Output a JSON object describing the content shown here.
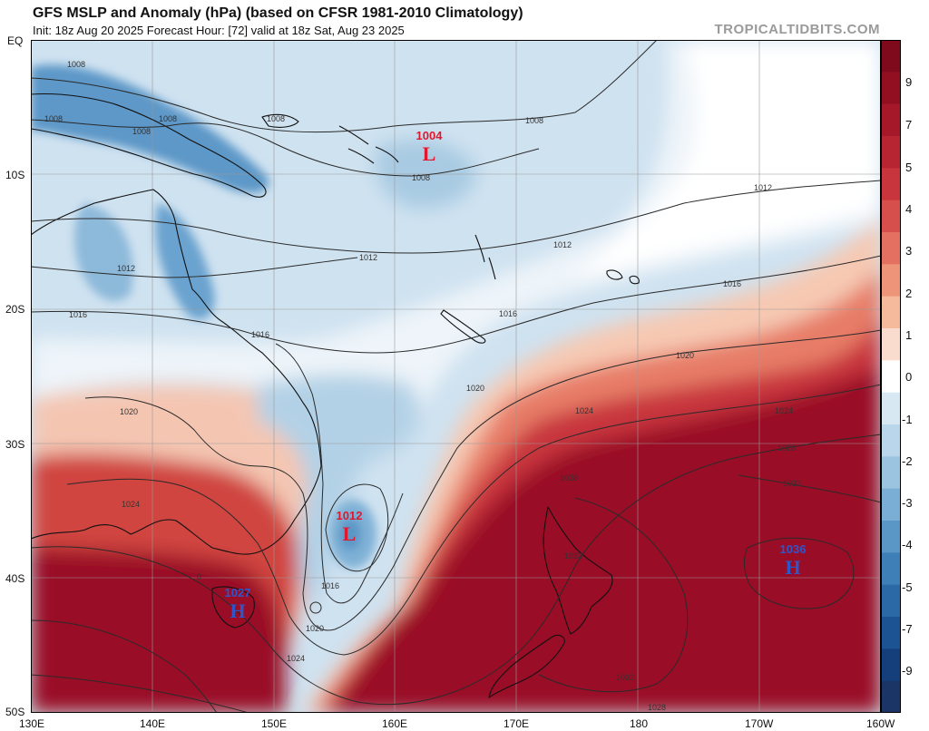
{
  "header": {
    "title": "GFS MSLP and Anomaly (hPa) (based on CFSR 1981-2010 Climatology)",
    "subtitle": "Init: 18z Aug 20 2025   Forecast Hour: [72]   valid at 18z Sat, Aug 23 2025",
    "brand": "TROPICALTIDBITS.COM"
  },
  "axes": {
    "lat_labels": [
      "EQ",
      "10S",
      "20S",
      "30S",
      "40S",
      "50S"
    ],
    "lon_labels": [
      "130E",
      "140E",
      "150E",
      "160E",
      "170E",
      "180",
      "170W",
      "160W"
    ]
  },
  "colorbar": {
    "labels": [
      "9",
      "7",
      "5",
      "4",
      "3",
      "2",
      "1",
      "0",
      "-1",
      "-2",
      "-3",
      "-4",
      "-5",
      "-7",
      "-9"
    ],
    "colors": [
      "#7f0a1c",
      "#920f22",
      "#a5182a",
      "#b72432",
      "#c8353c",
      "#d64f4d",
      "#e37060",
      "#ee9478",
      "#f5b99c",
      "#f9dccd",
      "#ffffff",
      "#d8e8f3",
      "#b9d6ea",
      "#9ac4e0",
      "#7aaed4",
      "#5a96c6",
      "#3f7fb8",
      "#2a68a6",
      "#1c5493",
      "#143f7b",
      "#1a3566"
    ]
  },
  "isobar_labels": [
    "1008",
    "1008",
    "1008",
    "1008",
    "1008",
    "1008",
    "1008",
    "1012",
    "1012",
    "1012",
    "1012",
    "1016",
    "1016",
    "1016",
    "1016",
    "1016",
    "1020",
    "1020",
    "1020",
    "1020",
    "1024",
    "1024",
    "1024",
    "1024",
    "1028",
    "1028",
    "1028",
    "1032",
    "1032",
    "1032"
  ],
  "pressure_centers": [
    {
      "value": "1004",
      "letter": "L",
      "kind": "low"
    },
    {
      "value": "1012",
      "letter": "L",
      "kind": "low"
    },
    {
      "value": "1027",
      "letter": "H",
      "kind": "high"
    },
    {
      "value": "1036",
      "letter": "H",
      "kind": "high"
    }
  ],
  "misc_labels": [
    "0"
  ]
}
